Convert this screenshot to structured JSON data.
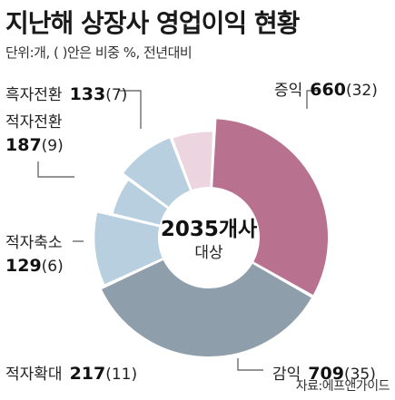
{
  "title": "지난해 상장사 영업이익 현황",
  "subtitle": "단위:개, ( )안은 비중 %, 전년대비",
  "source": "자료:에프앤가이드",
  "chart_data": {
    "type": "pie",
    "donut": true,
    "center_label": {
      "value": "2035개사",
      "label": "대상"
    },
    "slices": [
      {
        "name": "증익",
        "value": 660,
        "pct": "32",
        "color": "#b8728f"
      },
      {
        "name": "감익",
        "value": 709,
        "pct": "35",
        "color": "#8e9eaa"
      },
      {
        "name": "적자확대",
        "value": 217,
        "pct": "11",
        "color": "#b8cfe0"
      },
      {
        "name": "적자축소",
        "value": 129,
        "pct": "6",
        "color": "#b8cfe0"
      },
      {
        "name": "적자전환",
        "value": 187,
        "pct": "9",
        "color": "#b8cfe0"
      },
      {
        "name": "흑자전환",
        "value": 133,
        "pct": "7",
        "color": "#ecd5de"
      }
    ]
  }
}
